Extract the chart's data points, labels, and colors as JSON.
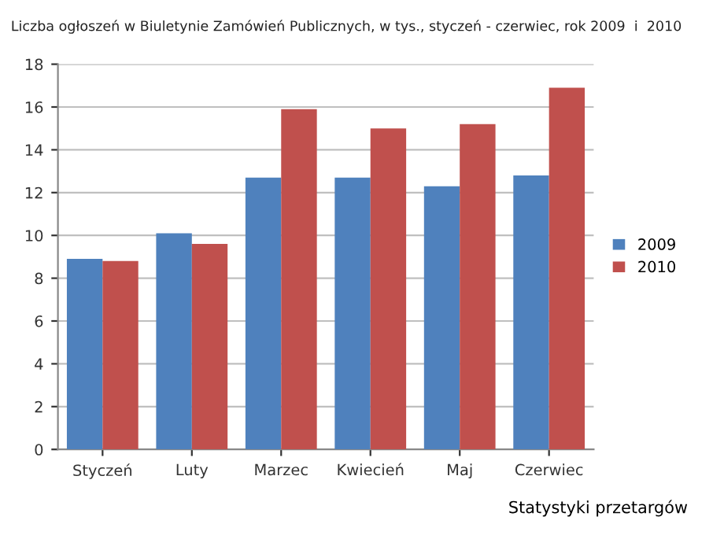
{
  "chart_data": {
    "type": "bar",
    "title": "Liczba ogłoszeń w Biuletynie Zamówień Publicznych, w tys., styczeń - czerwiec, rok 2009  i  2010",
    "categories": [
      "Styczeń",
      "Luty",
      "Marzec",
      "Kwiecień",
      "Maj",
      "Czerwiec"
    ],
    "series": [
      {
        "name": "2009",
        "color": "#4f81bd",
        "values": [
          8.9,
          10.1,
          12.7,
          12.7,
          12.3,
          12.8
        ]
      },
      {
        "name": "2010",
        "color": "#c0504d",
        "values": [
          8.8,
          9.6,
          15.9,
          15.0,
          15.2,
          16.9
        ]
      }
    ],
    "ylim": [
      0,
      18
    ],
    "yticks": [
      0,
      2,
      4,
      6,
      8,
      10,
      12,
      14,
      16,
      18
    ],
    "grid": "y",
    "legend": "right",
    "annotations": [
      "Statystyki przetargów"
    ]
  }
}
